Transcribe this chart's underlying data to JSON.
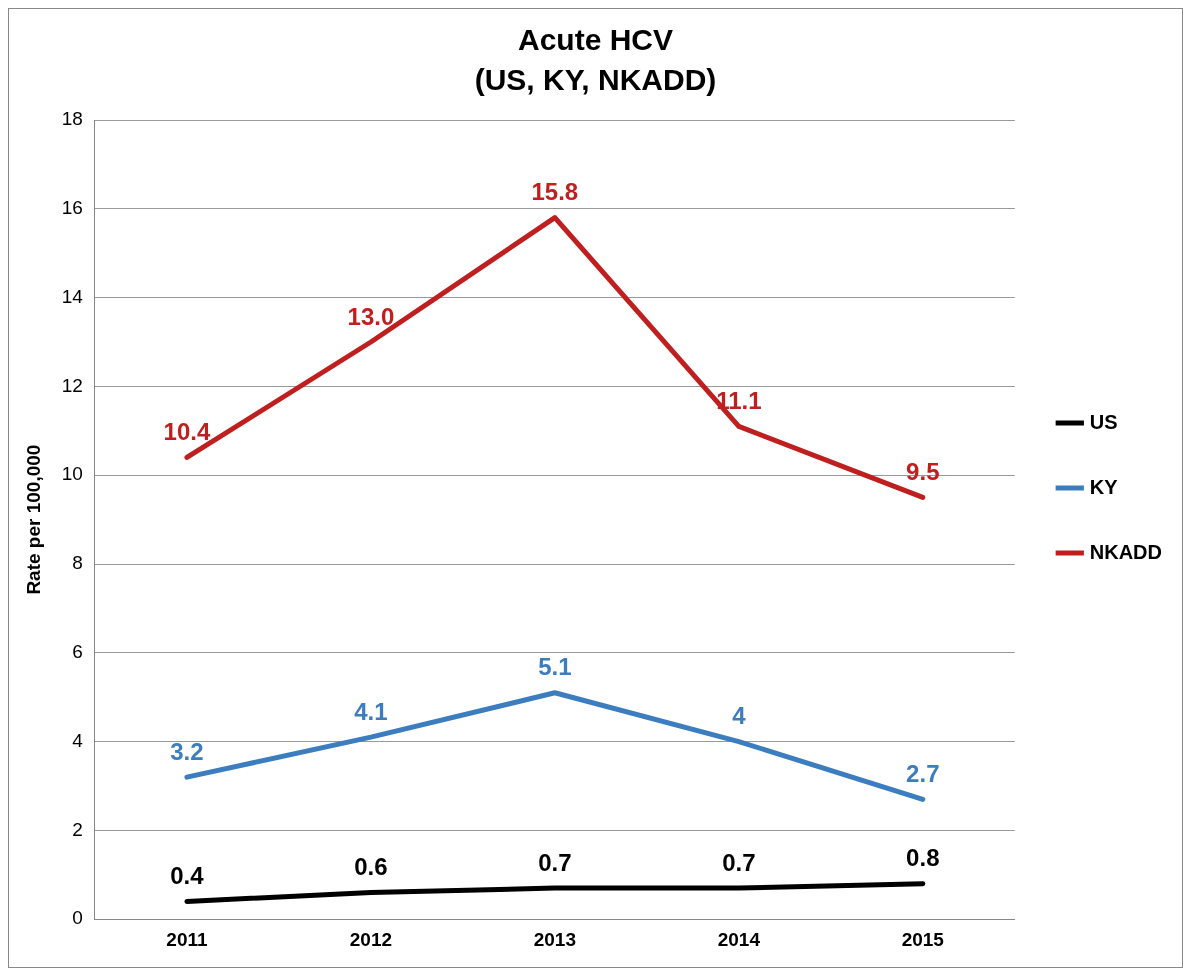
{
  "chart_data": {
    "type": "line",
    "title": "Acute HCV",
    "subtitle": "(US, KY, NKADD)",
    "ylabel": "Rate per 100,000",
    "categories": [
      "2011",
      "2012",
      "2013",
      "2014",
      "2015"
    ],
    "series": [
      {
        "name": "US",
        "color": "#000000",
        "values": [
          0.4,
          0.6,
          0.7,
          0.7,
          0.8
        ],
        "value_labels": [
          "0.4",
          "0.6",
          "0.7",
          "0.7",
          "0.8"
        ]
      },
      {
        "name": "KY",
        "color": "#3b7dbf",
        "values": [
          3.2,
          4.1,
          5.1,
          4,
          2.7
        ],
        "value_labels": [
          "3.2",
          "4.1",
          "5.1",
          "4",
          "2.7"
        ]
      },
      {
        "name": "NKADD",
        "color": "#c01f1f",
        "values": [
          10.4,
          13.0,
          15.8,
          11.1,
          9.5
        ],
        "value_labels": [
          "10.4",
          "13.0",
          "15.8",
          "11.1",
          "9.5"
        ]
      }
    ],
    "ylim": [
      0,
      18
    ],
    "yticks": [
      0,
      2,
      4,
      6,
      8,
      10,
      12,
      14,
      16,
      18
    ],
    "grid": "y",
    "legend": "right",
    "marker": "none",
    "line_style": "solid"
  }
}
